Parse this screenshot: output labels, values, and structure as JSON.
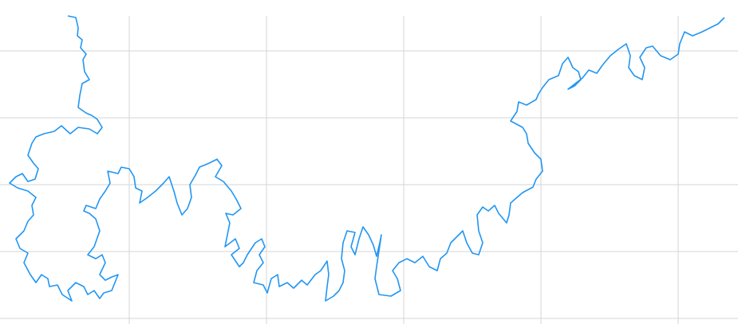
{
  "chart_data": {
    "type": "line",
    "color": "#2196f3",
    "grid": true,
    "xlim": [
      0,
      925
    ],
    "ylim": [
      407,
      0
    ],
    "xticks": [
      162,
      334,
      506,
      678,
      850
    ],
    "yticks": [
      64,
      148,
      232,
      316,
      400
    ],
    "x": [
      85,
      95,
      98,
      97,
      103,
      101,
      108,
      104,
      106,
      112,
      103,
      100,
      98,
      108,
      115,
      122,
      128,
      122,
      112,
      98,
      88,
      77,
      68,
      55,
      45,
      40,
      35,
      42,
      48,
      44,
      35,
      28,
      20,
      12,
      22,
      35,
      45,
      40,
      42,
      35,
      30,
      20,
      25,
      35,
      30,
      38,
      45,
      52,
      60,
      62,
      72,
      78,
      90,
      85,
      95,
      105,
      110,
      118,
      125,
      130,
      140,
      148,
      140,
      132,
      125,
      132,
      128,
      120,
      110,
      118,
      125,
      120,
      112,
      105,
      108,
      120,
      125,
      132,
      138,
      135,
      148,
      152,
      162,
      168,
      170,
      178,
      175,
      185,
      195,
      205,
      212,
      218,
      222,
      228,
      235,
      240,
      238,
      245,
      250,
      262,
      272,
      278,
      270,
      280,
      290,
      296,
      302,
      292,
      283,
      288,
      285,
      282,
      295,
      300,
      290,
      300,
      305,
      310,
      320,
      328,
      332,
      325,
      330,
      322,
      318,
      330,
      335,
      340,
      348,
      350,
      360,
      368,
      378,
      385,
      395,
      402,
      410,
      412,
      410,
      408,
      418,
      425,
      430,
      432,
      428,
      430,
      435,
      445,
      440,
      445,
      450,
      455,
      462,
      468,
      472,
      476,
      478,
      472,
      470,
      475,
      490,
      502,
      498,
      492,
      500,
      510,
      520,
      530,
      538,
      548,
      552,
      560,
      565,
      575,
      580,
      585,
      592,
      600,
      605,
      600,
      598,
      605,
      612,
      620,
      625,
      635,
      638,
      640,
      648,
      655,
      668,
      672,
      680,
      678,
      670,
      662,
      660,
      655,
      640,
      648,
      650,
      660,
      672,
      675,
      680,
      688,
      700,
      705,
      712,
      718,
      725,
      728,
      720,
      712,
      730,
      738,
      748,
      755,
      765,
      775,
      785,
      790,
      788,
      795,
      805,
      808,
      802,
      810,
      818,
      828,
      840,
      850,
      852,
      858,
      868,
      880,
      890,
      900,
      908
    ],
    "y": [
      20,
      22,
      35,
      45,
      50,
      60,
      68,
      75,
      90,
      100,
      105,
      120,
      135,
      142,
      145,
      150,
      160,
      168,
      162,
      160,
      168,
      158,
      165,
      168,
      172,
      180,
      195,
      205,
      212,
      225,
      228,
      218,
      222,
      230,
      236,
      240,
      248,
      258,
      270,
      278,
      290,
      300,
      312,
      318,
      330,
      345,
      355,
      345,
      350,
      360,
      358,
      370,
      378,
      365,
      355,
      360,
      370,
      365,
      375,
      368,
      365,
      345,
      348,
      352,
      345,
      330,
      320,
      325,
      320,
      310,
      290,
      275,
      268,
      265,
      258,
      262,
      250,
      240,
      230,
      215,
      218,
      210,
      212,
      222,
      236,
      240,
      255,
      248,
      240,
      230,
      222,
      240,
      255,
      270,
      262,
      248,
      232,
      220,
      210,
      205,
      200,
      208,
      222,
      228,
      240,
      250,
      262,
      270,
      268,
      280,
      295,
      310,
      300,
      312,
      320,
      335,
      330,
      320,
      305,
      300,
      310,
      320,
      330,
      340,
      355,
      358,
      368,
      350,
      345,
      360,
      355,
      362,
      352,
      358,
      345,
      340,
      328,
      345,
      360,
      378,
      372,
      365,
      355,
      340,
      325,
      305,
      290,
      292,
      310,
      320,
      300,
      285,
      295,
      308,
      322,
      305,
      295,
      335,
      350,
      370,
      372,
      365,
      350,
      340,
      330,
      325,
      330,
      322,
      335,
      340,
      325,
      318,
      305,
      295,
      290,
      305,
      318,
      320,
      305,
      290,
      270,
      260,
      265,
      258,
      268,
      280,
      270,
      255,
      248,
      242,
      235,
      225,
      215,
      200,
      192,
      180,
      168,
      160,
      152,
      140,
      128,
      132,
      125,
      118,
      110,
      100,
      95,
      80,
      72,
      85,
      90,
      100,
      108,
      112,
      98,
      88,
      92,
      82,
      70,
      62,
      55,
      70,
      85,
      95,
      100,
      85,
      72,
      60,
      58,
      70,
      75,
      68,
      55,
      40,
      45,
      40,
      35,
      30,
      22
    ]
  }
}
